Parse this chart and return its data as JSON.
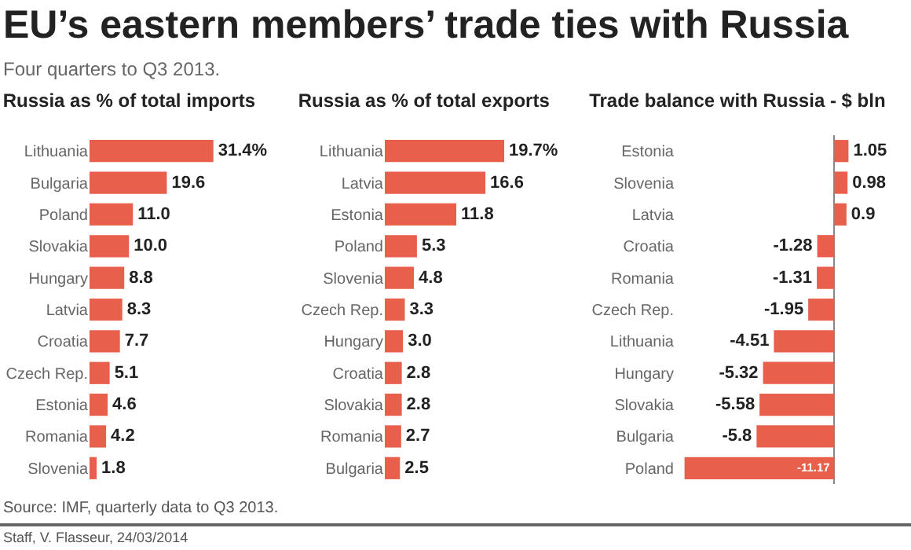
{
  "chart_data": [
    {
      "type": "other",
      "title": "EU’s eastern members’ trade ties with Russia",
      "subtitle": "Four quarters to Q3 2013.",
      "annotations": [
        "Source: IMF, quarterly data to Q3 2013.",
        "Staff, V. Flasseur, 24/03/2014"
      ]
    },
    {
      "type": "bar",
      "orientation": "horizontal",
      "title": "Russia as % of total imports",
      "categories": [
        "Lithuania",
        "Bulgaria",
        "Poland",
        "Slovakia",
        "Hungary",
        "Latvia",
        "Croatia",
        "Czech Rep.",
        "Estonia",
        "Romania",
        "Slovenia"
      ],
      "values": [
        31.4,
        19.6,
        11.0,
        10.0,
        8.8,
        8.3,
        7.7,
        5.1,
        4.6,
        4.2,
        1.8
      ],
      "value_labels": [
        "31.4%",
        "19.6",
        "11.0",
        "10.0",
        "8.8",
        "8.3",
        "7.7",
        "5.1",
        "4.6",
        "4.2",
        "1.8"
      ],
      "color": "#e8604c",
      "tick_labels": "y"
    },
    {
      "type": "bar",
      "orientation": "horizontal",
      "title": "Russia as % of total exports",
      "categories": [
        "Lithuania",
        "Latvia",
        "Estonia",
        "Poland",
        "Slovenia",
        "Czech Rep.",
        "Hungary",
        "Croatia",
        "Slovakia",
        "Romania",
        "Bulgaria"
      ],
      "values": [
        19.7,
        16.6,
        11.8,
        5.3,
        4.8,
        3.3,
        3.0,
        2.8,
        2.8,
        2.7,
        2.5
      ],
      "value_labels": [
        "19.7%",
        "16.6",
        "11.8",
        "5.3",
        "4.8",
        "3.3",
        "3.0",
        "2.8",
        "2.8",
        "2.7",
        "2.5"
      ],
      "color": "#e8604c",
      "tick_labels": "y"
    },
    {
      "type": "bar",
      "orientation": "horizontal",
      "title": "Trade balance with Russia - $ bln",
      "categories": [
        "Estonia",
        "Slovenia",
        "Latvia",
        "Croatia",
        "Romania",
        "Czech Rep.",
        "Lithuania",
        "Hungary",
        "Slovakia",
        "Bulgaria",
        "Poland"
      ],
      "values": [
        1.05,
        0.98,
        0.9,
        -1.28,
        -1.31,
        -1.95,
        -4.51,
        -5.32,
        -5.58,
        -5.8,
        -11.17
      ],
      "data_labels": true,
      "color": "#e8604c",
      "tick_labels": "y"
    }
  ]
}
